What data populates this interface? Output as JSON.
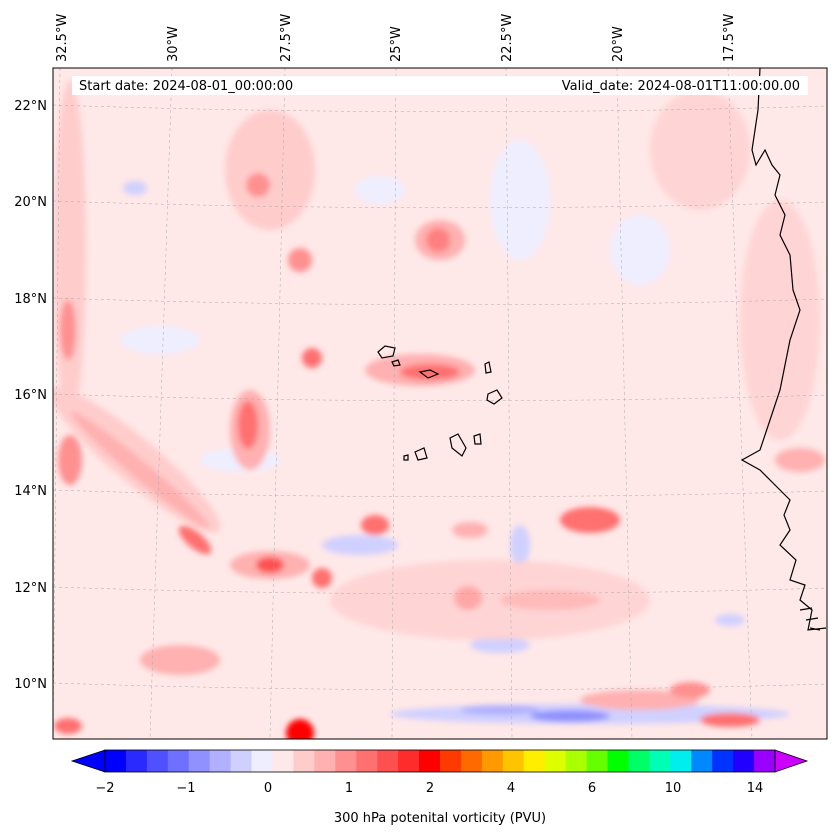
{
  "banner": {
    "start_date": "Start date: 2024-08-01_00:00:00",
    "valid_date": "Valid_date: 2024-08-01T11:00:00.00"
  },
  "map": {
    "region": "Cape Verde / West African coast",
    "lon_labels": [
      "32.5°W",
      "30°W",
      "27.5°W",
      "25°W",
      "22.5°W",
      "20°W",
      "17.5°W"
    ],
    "lat_labels": [
      "22°N",
      "20°N",
      "18°N",
      "16°N",
      "14°N",
      "12°N",
      "10°N"
    ],
    "gridlines": true
  },
  "colorbar": {
    "title": "300 hPa potenital vorticity (PVU)",
    "ticks": [
      "−2",
      "−1",
      "0",
      "1",
      "2",
      "4",
      "6",
      "10",
      "14"
    ],
    "colors": [
      "#0000ff",
      "#2a2aff",
      "#5050ff",
      "#7070ff",
      "#9090ff",
      "#b0b0ff",
      "#d0d0ff",
      "#eeeeff",
      "#ffe8e8",
      "#ffcccc",
      "#ffb0b0",
      "#ff9090",
      "#ff7070",
      "#ff5050",
      "#ff2c2c",
      "#ff0000",
      "#ff3a00",
      "#ff6a00",
      "#ff9900",
      "#ffc400",
      "#ffee00",
      "#ddff00",
      "#aaff00",
      "#66ff00",
      "#00ff00",
      "#00ff66",
      "#00ffb4",
      "#00eeee",
      "#0088ff",
      "#0033ff",
      "#2200ff",
      "#9900ff"
    ],
    "extend": "both"
  }
}
